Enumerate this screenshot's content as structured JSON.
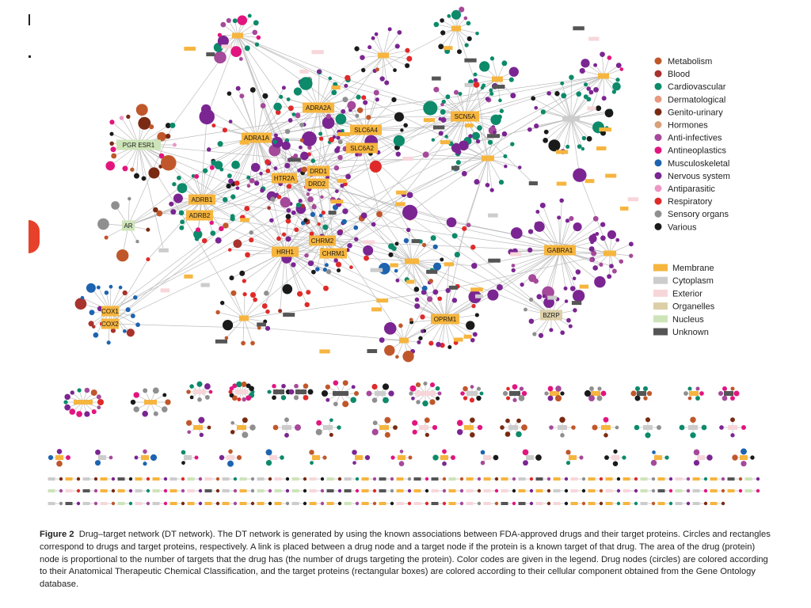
{
  "colors": {
    "edge": "#bdbdbd",
    "drug_categories": {
      "Metabolism": "#c0572b",
      "Blood": "#a8322d",
      "Cardiovascular": "#0c8a6a",
      "Dermatological": "#e89a80",
      "Genito-urinary": "#7a2a12",
      "Hormones": "#d9a07a",
      "Anti-infectives": "#a5499a",
      "Antineoplastics": "#e2157f",
      "Musculoskeletal": "#1d64b0",
      "Nervous system": "#7b2592",
      "Antiparasitic": "#ec97c4",
      "Respiratory": "#e02a2a",
      "Sensory organs": "#8f8f8f",
      "Various": "#1a1a1a"
    },
    "cellular_components": {
      "Membrane": "#f6b53e",
      "Cytoplasm": "#cccccc",
      "Exterior": "#f7d6da",
      "Organelles": "#dccfa8",
      "Nucleus": "#cde4b8",
      "Unknown": "#555555"
    }
  },
  "legend": {
    "drugs": [
      {
        "label": "Metabolism",
        "color": "#c0572b"
      },
      {
        "label": "Blood",
        "color": "#a8322d"
      },
      {
        "label": "Cardiovascular",
        "color": "#0c8a6a"
      },
      {
        "label": "Dermatological",
        "color": "#e89a80"
      },
      {
        "label": "Genito-urinary",
        "color": "#7a2a12"
      },
      {
        "label": "Hormones",
        "color": "#d9a07a"
      },
      {
        "label": "Anti-infectives",
        "color": "#a5499a"
      },
      {
        "label": "Antineoplastics",
        "color": "#e2157f"
      },
      {
        "label": "Musculoskeletal",
        "color": "#1d64b0"
      },
      {
        "label": "Nervous system",
        "color": "#7b2592"
      },
      {
        "label": "Antiparasitic",
        "color": "#ec97c4"
      },
      {
        "label": "Respiratory",
        "color": "#e02a2a"
      },
      {
        "label": "Sensory organs",
        "color": "#8f8f8f"
      },
      {
        "label": "Various",
        "color": "#1a1a1a"
      }
    ],
    "targets": [
      {
        "label": "Membrane",
        "color": "#f6b53e"
      },
      {
        "label": "Cytoplasm",
        "color": "#cccccc"
      },
      {
        "label": "Exterior",
        "color": "#f7d6da"
      },
      {
        "label": "Organelles",
        "color": "#dccfa8"
      },
      {
        "label": "Nucleus",
        "color": "#cde4b8"
      },
      {
        "label": "Unknown",
        "color": "#555555"
      }
    ]
  },
  "target_labels": [
    "PGR ESR1",
    "AR",
    "ADRA1A",
    "ADRA2A",
    "ADRB1",
    "ADRB2",
    "HTR2A",
    "DRD1",
    "DRD2",
    "SLC6A4",
    "SLC6A2",
    "SCN5A",
    "CHRM2",
    "HRH1",
    "CHRM1",
    "GABRA1",
    "BZRP",
    "OPRM1",
    "COX1",
    "COX2"
  ],
  "caption": {
    "label": "Figure 2",
    "text": "Drug–target network (DT network). The DT network is generated by using the known associations between FDA-approved drugs and their target proteins. Circles and rectangles correspond to drugs and target proteins, respectively. A link is placed between a drug node and a target node if the protein is a known target of that drug. The area of the drug (protein) node is proportional to the number of targets that the drug has (the number of drugs targeting the protein). Color codes are given in the legend. Drug nodes (circles) are colored according to their Anatomical Therapeutic Chemical Classification, and the target proteins (rectangular boxes) are colored according to their cellular component obtained from the Gene Ontology database."
  }
}
